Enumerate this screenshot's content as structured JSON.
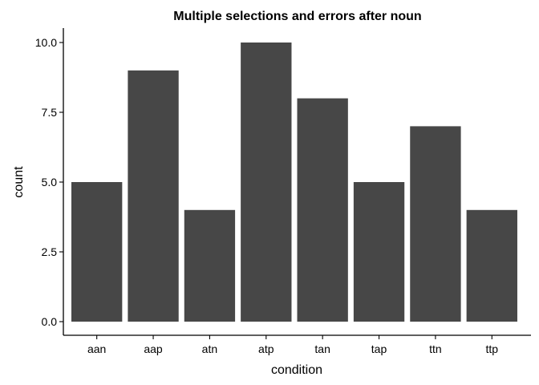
{
  "chart_data": {
    "type": "bar",
    "title": "Multiple selections and errors after noun",
    "xlabel": "condition",
    "ylabel": "count",
    "categories": [
      "aan",
      "aap",
      "atn",
      "atp",
      "tan",
      "tap",
      "ttn",
      "ttp"
    ],
    "values": [
      5,
      9,
      4,
      10,
      8,
      5,
      7,
      4
    ],
    "ylim": [
      0,
      10
    ],
    "yticks": [
      0,
      2.5,
      5,
      7.5,
      10
    ],
    "ytick_labels": [
      "0.0",
      "2.5",
      "5.0",
      "7.5",
      "10.0"
    ],
    "grid": false,
    "bar_color": "#474747"
  }
}
